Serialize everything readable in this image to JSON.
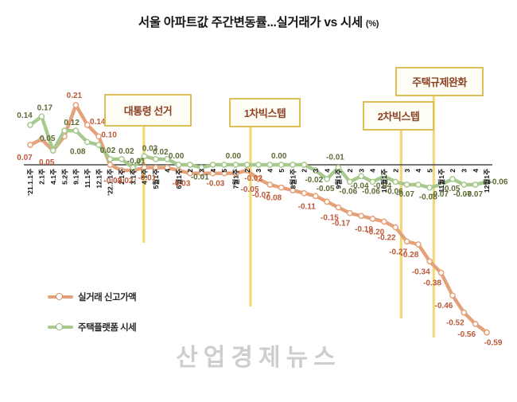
{
  "title": {
    "main": "서울 아파트값 주간변동률...실거래가 vs 시세",
    "unit": "(%)"
  },
  "watermark": "산업경제뉴스",
  "legend": {
    "items": [
      {
        "label": "실거래 신고가액",
        "color": "#e5a179"
      },
      {
        "label": "주택플랫폼 시세",
        "color": "#a8c98e"
      }
    ]
  },
  "chart_data": {
    "type": "line",
    "title": "서울 아파트값 주간변동률...실거래가 vs 시세 (%)",
    "ylim": [
      -0.65,
      0.25
    ],
    "grid": false,
    "zero_line": true,
    "legend_position": "bottom-left",
    "categories": [
      "'21.1.1주",
      "2.1주",
      "4.1주",
      "5.2주",
      "9.1주",
      "11.1주",
      "12.1주",
      "'22.1.1주",
      "2.1주",
      "3.1주",
      "4.1주",
      "5월1주",
      "4",
      "6월1주",
      "2",
      "3",
      "4",
      "5",
      "7월1주",
      "2",
      "3",
      "4",
      "5",
      "8월1주",
      "2",
      "3",
      "4",
      "9월1주",
      "2",
      "3",
      "4",
      "10월1주",
      "2",
      "3",
      "4",
      "5",
      "11월1주",
      "2",
      "3",
      "4",
      "12월1주"
    ],
    "series": [
      {
        "name": "실거래 신고가액",
        "color": "#e5a179",
        "label_color": "#bc5838",
        "values": [
          0.07,
          0.09,
          0.05,
          0.1,
          0.21,
          0.14,
          0.1,
          0.0,
          -0.02,
          -0.02,
          -0.01,
          -0.01,
          -0.01,
          -0.02,
          -0.03,
          -0.03,
          -0.03,
          -0.03,
          -0.03,
          -0.02,
          -0.05,
          -0.07,
          -0.08,
          -0.09,
          -0.1,
          -0.11,
          -0.13,
          -0.15,
          -0.17,
          -0.18,
          -0.19,
          -0.2,
          -0.22,
          -0.27,
          -0.28,
          -0.34,
          -0.38,
          -0.46,
          -0.52,
          -0.56,
          -0.59
        ],
        "point_labels": [
          "0.07",
          null,
          "0.05",
          null,
          "0.21",
          "0.14",
          "0.10",
          null,
          "-0.02",
          "-0.02",
          null,
          "-0.01",
          null,
          null,
          "-0.03",
          null,
          null,
          "-0.03",
          null,
          "-0.02",
          "-0.05",
          "-0.07",
          "-0.08",
          null,
          null,
          "-0.11",
          null,
          "-0.15",
          "-0.17",
          null,
          "-0.19",
          "-0.20",
          "-0.22",
          "-0.27",
          "-0.28",
          "-0.34",
          "-0.38",
          "-0.46",
          "-0.52",
          "-0.56",
          "-0.59"
        ]
      },
      {
        "name": "주택플랫폼 시세",
        "color": "#a8c98e",
        "label_color": "#5c6b35",
        "values": [
          0.14,
          0.17,
          0.05,
          0.12,
          0.12,
          0.08,
          0.07,
          0.02,
          0.02,
          -0.01,
          0.03,
          0.02,
          0.02,
          0.0,
          0.0,
          -0.01,
          0.0,
          0.0,
          0.0,
          0.0,
          0.0,
          0.0,
          0.0,
          0.0,
          0.0,
          -0.02,
          -0.05,
          -0.01,
          -0.06,
          -0.04,
          -0.06,
          -0.04,
          -0.06,
          -0.07,
          -0.07,
          -0.08,
          -0.07,
          -0.05,
          -0.07,
          -0.07,
          -0.06
        ],
        "point_labels": [
          "0.14",
          "0.17",
          "0.05",
          "0.12",
          null,
          "0.08",
          null,
          "0.02",
          "0.02",
          "-0.01",
          "0.03",
          "0.02",
          null,
          "0.00",
          null,
          "-0.01",
          null,
          null,
          "0.00",
          null,
          null,
          null,
          "0.00",
          null,
          null,
          "-0.02",
          "-0.05",
          "-0.01",
          "-0.06",
          "-0.04",
          "-0.06",
          "-0.04",
          "-0.06",
          "-0.07",
          null,
          "-0.08",
          "-0.07",
          "-0.05",
          "-0.07",
          "-0.07",
          "-0.06"
        ]
      }
    ],
    "events": [
      {
        "label": "대통령 선거",
        "x_index": 9.95
      },
      {
        "label": "1차빅스텝",
        "x_index": 19.3
      },
      {
        "label": "2차빅스텝",
        "x_index": 32.5
      },
      {
        "label": "주택규제완화",
        "x_index": 35.35
      }
    ]
  }
}
